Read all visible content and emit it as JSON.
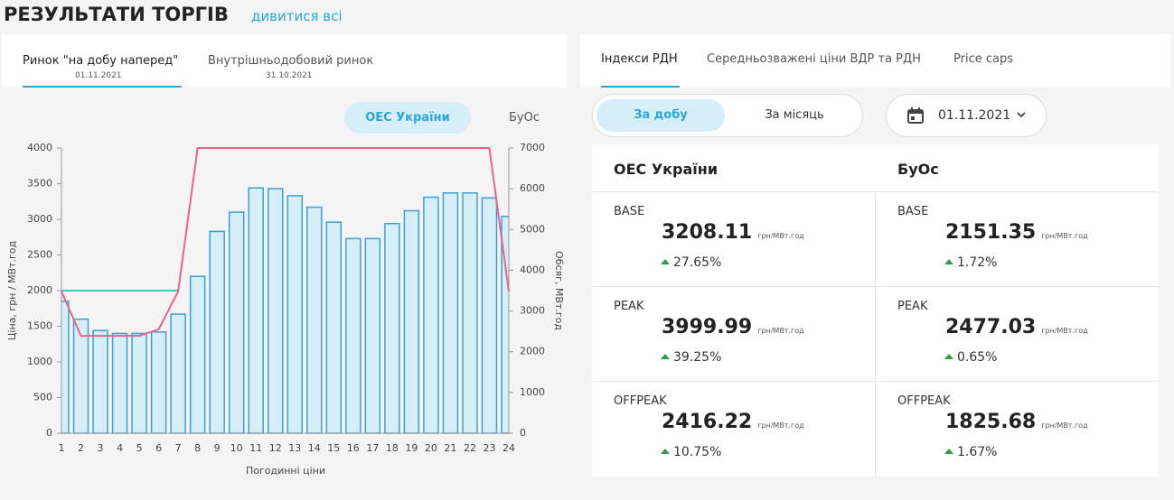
{
  "header": {
    "title": "РЕЗУЛЬТАТИ ТОРГІВ",
    "link": "дивитися всі"
  },
  "left_tabs": [
    {
      "label": "Ринок \"на добу наперед\"",
      "date": "01.11.2021"
    },
    {
      "label": "Внутрішньодобовий ринок",
      "date": "31.10.2021"
    }
  ],
  "chart_toggle": [
    "ОЕС України",
    "БуОс"
  ],
  "chart": {
    "type": "bar",
    "xlabel": "Погодинні ціни",
    "ylabel": "Ціна, грн / МВт.год",
    "y2label": "Обсяг, МВт.год",
    "categories": [
      "1",
      "2",
      "3",
      "4",
      "5",
      "6",
      "7",
      "8",
      "9",
      "10",
      "11",
      "12",
      "13",
      "14",
      "15",
      "16",
      "17",
      "18",
      "19",
      "20",
      "21",
      "22",
      "23",
      "24"
    ],
    "series": [
      {
        "type": "bar",
        "color": "#3aa0d8",
        "values": [
          1850,
          1600,
          1440,
          1400,
          1400,
          1420,
          1670,
          2200,
          2830,
          3100,
          3440,
          3430,
          3330,
          3170,
          2960,
          2730,
          2730,
          2940,
          3120,
          3310,
          3370,
          3370,
          3300,
          3040
        ]
      },
      {
        "type": "line",
        "color": "#4cc3c3",
        "values": [
          2000,
          2000,
          2000,
          2000,
          2000,
          2000,
          2000,
          null,
          null,
          null,
          null,
          null,
          null,
          null,
          null,
          null,
          null,
          null,
          null,
          null,
          null,
          null,
          null,
          null
        ]
      },
      {
        "type": "line",
        "color": "#e8648a",
        "axis": "y2",
        "values": [
          3480,
          2390,
          2390,
          2390,
          2390,
          2550,
          3480,
          7000,
          7000,
          7000,
          7000,
          7000,
          7000,
          7000,
          7000,
          7000,
          7000,
          7000,
          7000,
          7000,
          7000,
          7000,
          7000,
          3480
        ]
      }
    ],
    "ylim": [
      0,
      4000
    ],
    "yticks": [
      0,
      500,
      1000,
      1500,
      2000,
      2500,
      3000,
      3500,
      4000
    ],
    "y2lim": [
      0,
      7000
    ],
    "y2ticks": [
      0,
      1000,
      2000,
      3000,
      4000,
      5000,
      6000,
      7000
    ]
  },
  "right_tabs": [
    "Індекси РДН",
    "Середньозважені ціни ВДР та РДН",
    "Price caps"
  ],
  "period_toggle": [
    "За добу",
    "За місяць"
  ],
  "date": "01.11.2021",
  "indices": {
    "columns": [
      "ОЕС України",
      "БуОс"
    ],
    "unit": "грн/МВт.год",
    "rows": [
      {
        "label": "BASE",
        "cells": [
          {
            "value": "3208.11",
            "change": "27.65%"
          },
          {
            "value": "2151.35",
            "change": "1.72%"
          }
        ]
      },
      {
        "label": "PEAK",
        "cells": [
          {
            "value": "3999.99",
            "change": "39.25%"
          },
          {
            "value": "2477.03",
            "change": "0.65%"
          }
        ]
      },
      {
        "label": "OFFPEAK",
        "cells": [
          {
            "value": "2416.22",
            "change": "10.75%"
          },
          {
            "value": "1825.68",
            "change": "1.67%"
          }
        ]
      }
    ]
  }
}
